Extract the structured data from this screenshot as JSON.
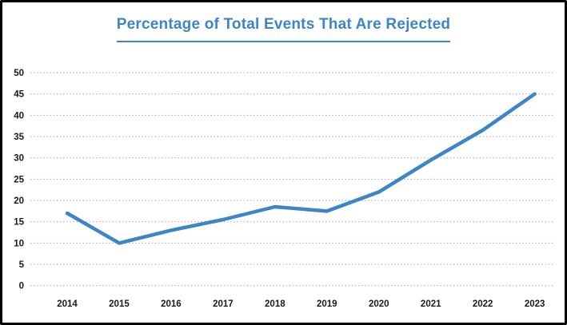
{
  "chart_data": {
    "type": "line",
    "title": "Percentage of Total Events That Are Rejected",
    "categories": [
      "2014",
      "2015",
      "2016",
      "2017",
      "2018",
      "2019",
      "2020",
      "2021",
      "2022",
      "2023"
    ],
    "series": [
      {
        "name": "Percentage of total events rejected",
        "values": [
          17,
          10,
          13,
          15.5,
          18.5,
          17.5,
          22,
          29.5,
          36.5,
          45
        ]
      }
    ],
    "xlabel": "",
    "ylabel": "",
    "ylim": [
      0,
      50
    ],
    "ytick_step": 5,
    "yticks": [
      0,
      5,
      10,
      15,
      20,
      25,
      30,
      35,
      40,
      45,
      50
    ],
    "grid": "horizontal-dotted",
    "legend": "none",
    "colors": {
      "line": "#3d85c6",
      "title": "#3d85c6",
      "title_underline": "#3d85c6",
      "axis_text": "#1a1a1a",
      "gridline": "#a6a6a6",
      "frame_border": "#000000",
      "background": "#ffffff"
    }
  }
}
